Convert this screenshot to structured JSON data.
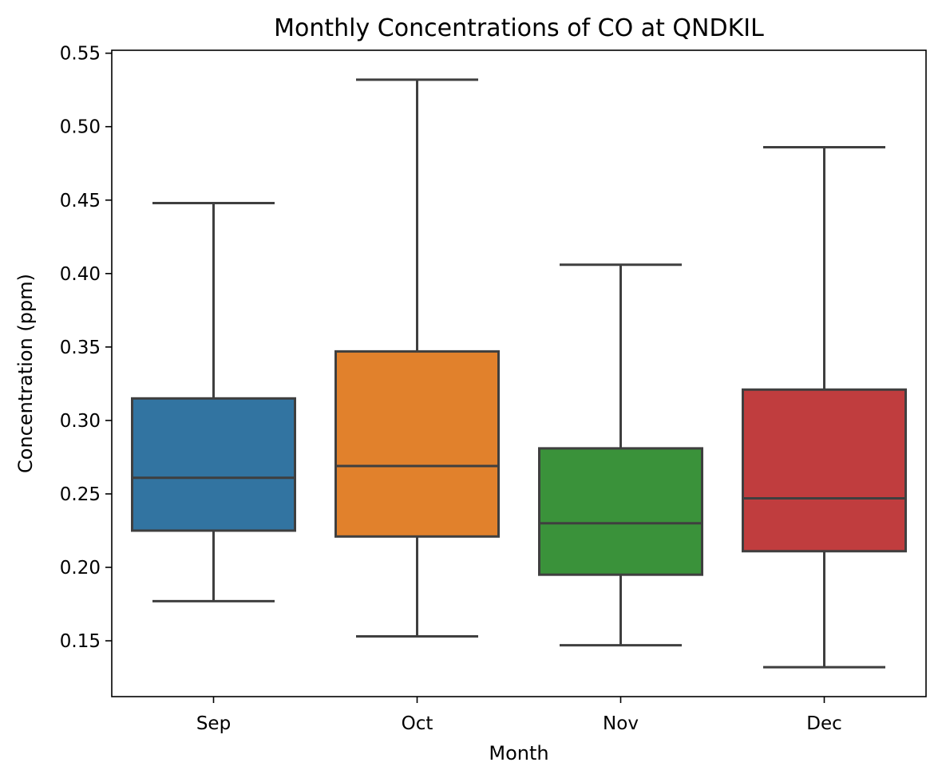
{
  "chart_data": {
    "type": "box",
    "title": "Monthly Concentrations of CO at QNDKIL",
    "xlabel": "Month",
    "ylabel": "Concentration (ppm)",
    "ylim": [
      0.112,
      0.552
    ],
    "yticks": [
      0.15,
      0.2,
      0.25,
      0.3,
      0.35,
      0.4,
      0.45,
      0.5,
      0.55
    ],
    "ytick_labels": [
      "0.15",
      "0.20",
      "0.25",
      "0.30",
      "0.35",
      "0.40",
      "0.45",
      "0.50",
      "0.55"
    ],
    "grid": false,
    "categories": [
      "Sep",
      "Oct",
      "Nov",
      "Dec"
    ],
    "boxes": [
      {
        "category": "Sep",
        "whisker_low": 0.177,
        "q1": 0.225,
        "median": 0.261,
        "q3": 0.315,
        "whisker_high": 0.448,
        "color": "#3274a1"
      },
      {
        "category": "Oct",
        "whisker_low": 0.153,
        "q1": 0.221,
        "median": 0.269,
        "q3": 0.347,
        "whisker_high": 0.532,
        "color": "#e1812c"
      },
      {
        "category": "Nov",
        "whisker_low": 0.147,
        "q1": 0.195,
        "median": 0.23,
        "q3": 0.281,
        "whisker_high": 0.406,
        "color": "#3a923a"
      },
      {
        "category": "Dec",
        "whisker_low": 0.132,
        "q1": 0.211,
        "median": 0.247,
        "q3": 0.321,
        "whisker_high": 0.486,
        "color": "#c03d3e"
      }
    ]
  }
}
